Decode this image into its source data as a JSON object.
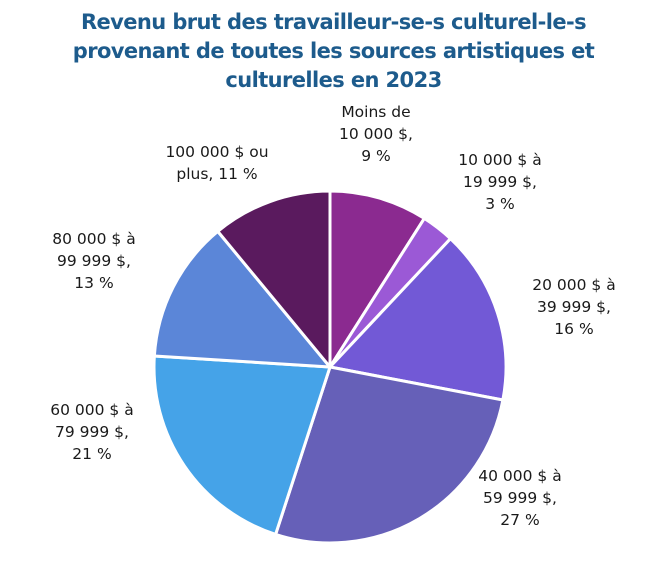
{
  "chart_data": {
    "type": "pie",
    "title_lines": [
      "Revenu brut des travailleur-se-s culturel-le-s",
      "provenant de toutes les sources artistiques et",
      "culturelles en 2023"
    ],
    "categories": [
      "Moins de 10 000 $",
      "10 000 $ à 19 999 $",
      "20 000 $ à 39 999 $",
      "40 000 $ à 59 999 $",
      "60 000 $ à 79 999 $",
      "80 000 $ à 99 999 $",
      "100 000 $ ou plus"
    ],
    "values": [
      9,
      3,
      16,
      27,
      21,
      13,
      11
    ],
    "unit": "%",
    "colors": [
      "#8b2a90",
      "#9b59d6",
      "#7259d6",
      "#6660b8",
      "#45a3e8",
      "#5b86d8",
      "#5a1a5e"
    ],
    "data_labels": [
      [
        "Moins de",
        "10 000 $,",
        "9 %"
      ],
      [
        "10 000 $ à",
        "19 999 $,",
        "3 %"
      ],
      [
        "20 000 $ à",
        "39 999 $,",
        "16 %"
      ],
      [
        "40 000 $ à",
        "59 999 $,",
        "27 %"
      ],
      [
        "60 000 $ à",
        "79 999 $,",
        "21 %"
      ],
      [
        "80 000 $ à",
        "99 999 $,",
        "13 %"
      ],
      [
        "100 000 $ ou",
        "plus, 11 %"
      ]
    ],
    "legend": "none"
  }
}
